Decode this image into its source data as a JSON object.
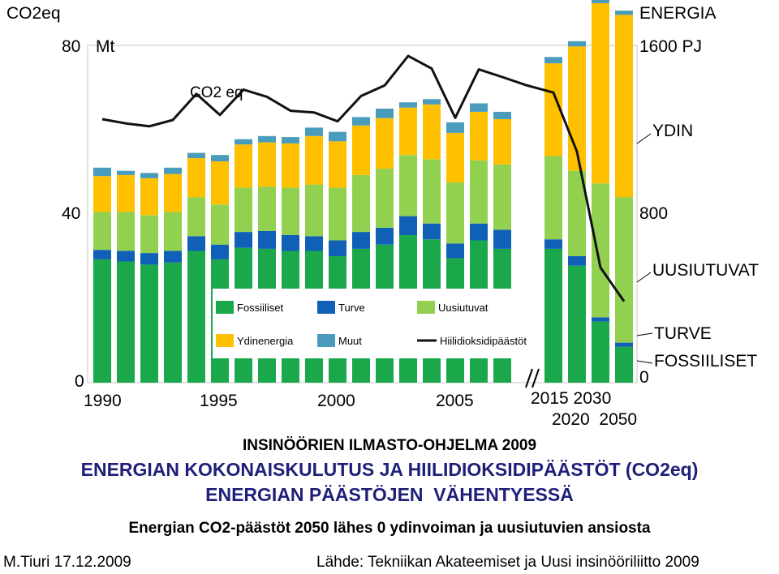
{
  "chart_data": {
    "type": "bar",
    "left_unit_header": "CO2eq",
    "left_top_tick": "80",
    "left_unit": "Mt",
    "left_mid_tick": "40",
    "left_zero": "0",
    "right_unit_header": "ENERGIA",
    "right_top_tick": "1600 PJ",
    "right_mid_tick": "800",
    "right_zero": "0",
    "ylim_left": [
      0,
      80
    ],
    "ylim_right": [
      0,
      1600
    ],
    "x_labels_historic": [
      "1990",
      "1995",
      "2000",
      "2005"
    ],
    "x_labels_future_row1": "2015 2030",
    "x_labels_future_row2": "2020  2050",
    "categories": [
      "1990",
      "1991",
      "1992",
      "1993",
      "1994",
      "1995",
      "1996",
      "1997",
      "1998",
      "1999",
      "2000",
      "2001",
      "2002",
      "2003",
      "2004",
      "2005",
      "2006",
      "2007",
      "2008",
      "2015",
      "2020",
      "2030",
      "2050"
    ],
    "series": [
      {
        "name": "Fossiiliset",
        "color": "#1aa84b",
        "values": [
          585,
          575,
          560,
          570,
          625,
          585,
          640,
          635,
          625,
          625,
          600,
          635,
          655,
          700,
          680,
          590,
          675,
          635,
          0,
          635,
          555,
          290,
          170
        ]
      },
      {
        "name": "Turve",
        "color": "#1060b8",
        "values": [
          45,
          50,
          55,
          55,
          70,
          70,
          75,
          85,
          75,
          70,
          75,
          80,
          80,
          90,
          75,
          70,
          80,
          90,
          0,
          45,
          45,
          20,
          20
        ]
      },
      {
        "name": "Uusiutuvat",
        "color": "#92d050",
        "values": [
          180,
          185,
          180,
          185,
          185,
          190,
          210,
          210,
          225,
          245,
          250,
          270,
          280,
          290,
          305,
          290,
          300,
          310,
          0,
          395,
          405,
          635,
          690
        ]
      },
      {
        "name": "Ydinenergia",
        "color": "#ffc000",
        "values": [
          170,
          175,
          175,
          180,
          185,
          205,
          205,
          210,
          210,
          230,
          220,
          235,
          240,
          225,
          260,
          235,
          230,
          215,
          0,
          440,
          590,
          855,
          865
        ]
      },
      {
        "name": "Muut",
        "color": "#4a9cbc",
        "values": [
          40,
          20,
          25,
          30,
          25,
          30,
          25,
          30,
          30,
          40,
          45,
          40,
          45,
          25,
          25,
          50,
          40,
          35,
          0,
          30,
          25,
          25,
          20
        ]
      }
    ],
    "co2_series": {
      "name": "Hiilidioksidipäästöt",
      "values": [
        62.5,
        61.5,
        60.8,
        62.3,
        68.5,
        63.5,
        69.5,
        67.8,
        64.5,
        64.1,
        62,
        68,
        70.5,
        77.5,
        74.5,
        62.8,
        74.3,
        72.5,
        70.6,
        68.8,
        54.8,
        27.3,
        19.3
      ]
    },
    "legend_position": "inside-bottom-right",
    "right_labels": [
      "YDIN",
      "UUSIUTUVAT",
      "TURVE",
      "FOSSIILISET"
    ],
    "annotation": "CO2 eq"
  },
  "title": {
    "line1": "INSINÖÖRIEN ILMASTO-OHJELMA 2009",
    "line2": "ENERGIAN KOKONAISKULUTUS JA HIILIDIOKSIDIPÄÄSTÖT (CO2eq)",
    "line3": "ENERGIAN PÄÄSTÖJEN  VÄHENTYESSÄ",
    "line4": "Energian CO2-päästöt 2050 lähes 0 ydinvoiman ja uusiutuvien ansiosta"
  },
  "footer": {
    "author": "M.Tiuri 17.12.2009",
    "source": "Lähde: Tekniikan Akateemiset ja Uusi insinööriliitto 2009"
  }
}
